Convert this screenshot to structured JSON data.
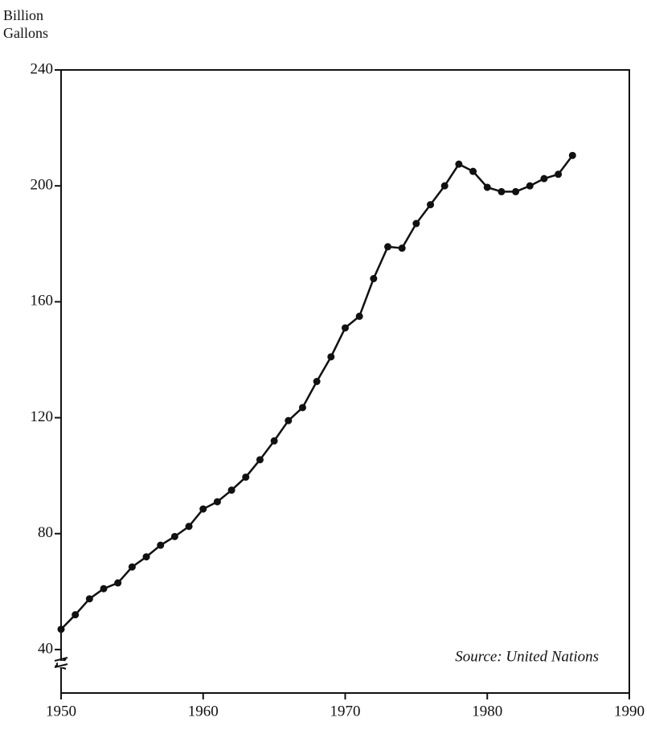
{
  "chart_data": {
    "type": "line",
    "ylabel": "Billion Gallons",
    "annotation": "Source: United Nations",
    "x": [
      1950,
      1951,
      1952,
      1953,
      1954,
      1955,
      1956,
      1957,
      1958,
      1959,
      1960,
      1961,
      1962,
      1963,
      1964,
      1965,
      1966,
      1967,
      1968,
      1969,
      1970,
      1971,
      1972,
      1973,
      1974,
      1975,
      1976,
      1977,
      1978,
      1979,
      1980,
      1981,
      1982,
      1983,
      1984,
      1985,
      1986
    ],
    "series": [
      {
        "color": "#111111",
        "values": [
          47,
          52,
          57.5,
          61,
          63,
          68.5,
          72,
          76,
          79,
          82.5,
          88.5,
          91,
          95,
          99.5,
          105.5,
          112,
          119,
          123.5,
          132.5,
          141,
          151,
          155,
          168,
          179,
          178.5,
          187,
          193.5,
          200,
          207.5,
          205,
          199.5,
          198,
          198,
          200,
          202.5,
          204,
          210.5
        ]
      }
    ],
    "xlim": [
      1950,
      1990
    ],
    "xticks": [
      1950,
      1960,
      1970,
      1980,
      1990
    ],
    "ylim": [
      25,
      240
    ],
    "yticks": [
      40,
      80,
      120,
      160,
      200,
      240
    ]
  }
}
